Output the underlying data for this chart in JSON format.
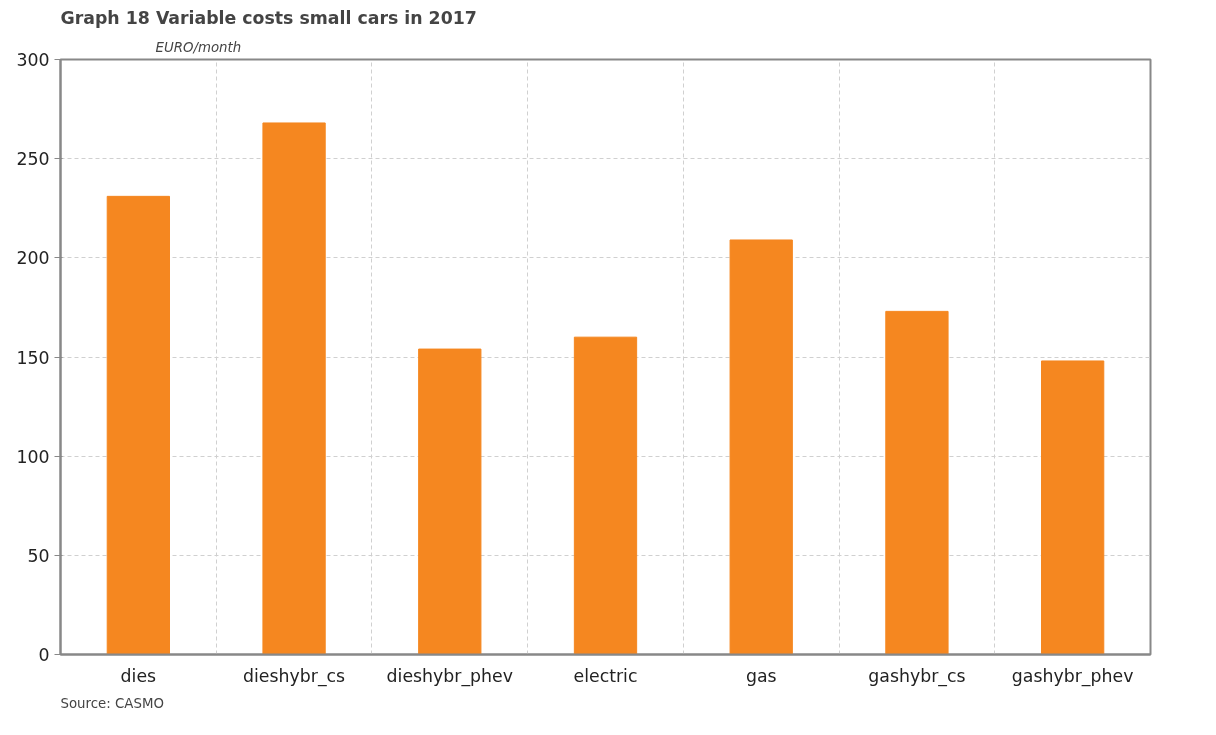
{
  "chart_data": {
    "type": "bar",
    "title": "Graph 18   Variable costs small cars in 2017",
    "subtitle": "EURO/month",
    "categories": [
      "dies",
      "dieshybr_cs",
      "dieshybr_phev",
      "electric",
      "gas",
      "gashybr_cs",
      "gashybr_phev"
    ],
    "values": [
      231,
      268,
      154,
      160,
      209,
      173,
      148
    ],
    "color": "#f58720",
    "ylim": [
      0,
      300
    ],
    "yticks": [
      0,
      50,
      100,
      150,
      200,
      250,
      300
    ],
    "grid": true,
    "annotations": [
      "Source: CASMO"
    ]
  }
}
